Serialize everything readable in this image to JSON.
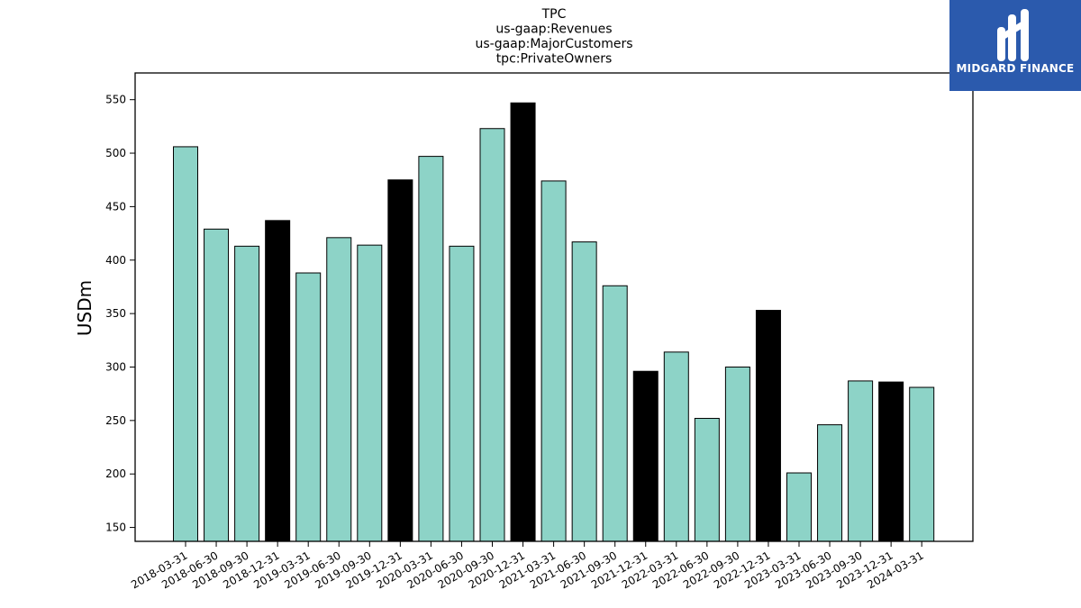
{
  "logo": {
    "text": "MIDGARD FINANCE",
    "background": "#2b5aad"
  },
  "chart_data": {
    "type": "bar",
    "title_lines": [
      "TPC",
      "us-gaap:Revenues",
      "us-gaap:MajorCustomers",
      "tpc:PrivateOwners"
    ],
    "xlabel": "",
    "ylabel": "USDm",
    "ylim": [
      137,
      575
    ],
    "yticks": [
      150,
      200,
      250,
      300,
      350,
      400,
      450,
      500,
      550
    ],
    "categories": [
      "2018-03-31",
      "2018-06-30",
      "2018-09-30",
      "2018-12-31",
      "2019-03-31",
      "2019-06-30",
      "2019-09-30",
      "2019-12-31",
      "2020-03-31",
      "2020-06-30",
      "2020-09-30",
      "2020-12-31",
      "2021-03-31",
      "2021-06-30",
      "2021-09-30",
      "2021-12-31",
      "2022-03-31",
      "2022-06-30",
      "2022-09-30",
      "2022-12-31",
      "2023-03-31",
      "2023-06-30",
      "2023-09-30",
      "2023-12-31",
      "2024-03-31"
    ],
    "values": [
      506,
      429,
      413,
      437,
      388,
      421,
      414,
      475,
      497,
      413,
      523,
      547,
      474,
      417,
      376,
      296,
      314,
      252,
      300,
      353,
      201,
      246,
      287,
      286,
      281
    ],
    "highlight": [
      false,
      false,
      false,
      true,
      false,
      false,
      false,
      true,
      false,
      false,
      false,
      true,
      false,
      false,
      false,
      true,
      false,
      false,
      false,
      true,
      false,
      false,
      false,
      true,
      false
    ],
    "colors": {
      "normal": "#8dd3c7",
      "highlight": "#000000",
      "edge": "#000000"
    },
    "grid": false,
    "legend": "none"
  }
}
